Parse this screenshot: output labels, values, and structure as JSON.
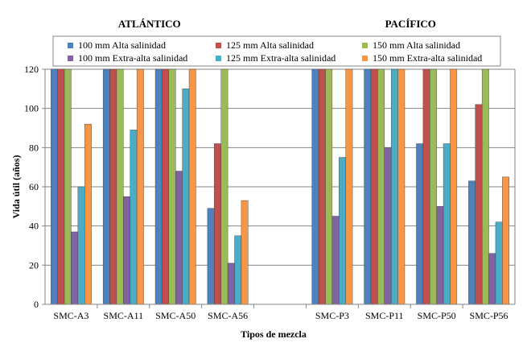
{
  "chart_data": {
    "type": "bar",
    "ylabel": "Vida útil (años)",
    "xlabel": "Tipos de mezcla",
    "ylim": [
      0,
      120
    ],
    "yticks": [
      0,
      20,
      40,
      60,
      80,
      100,
      120
    ],
    "grid": true,
    "regions": [
      {
        "title": "ATLÁNTICO",
        "categories": [
          "SMC-A3",
          "SMC-A11",
          "SMC-A50",
          "SMC-A56"
        ]
      },
      {
        "title": "PACÍFICO",
        "categories": [
          "SMC-P3",
          "SMC-P11",
          "SMC-P50",
          "SMC-P56"
        ]
      }
    ],
    "categories": [
      "SMC-A3",
      "SMC-A11",
      "SMC-A50",
      "SMC-A56",
      "",
      "SMC-P3",
      "SMC-P11",
      "SMC-P50",
      "SMC-P56"
    ],
    "series": [
      {
        "name": "100 mm Alta salinidad",
        "color": "#4f81bd",
        "values": [
          120,
          120,
          120,
          49,
          null,
          120,
          120,
          82,
          63
        ]
      },
      {
        "name": "125 mm Alta salinidad",
        "color": "#c0504d",
        "values": [
          120,
          120,
          120,
          82,
          null,
          120,
          120,
          120,
          102
        ]
      },
      {
        "name": "150 mm Alta salinidad",
        "color": "#9bbb59",
        "values": [
          120,
          120,
          120,
          120,
          null,
          120,
          120,
          120,
          120
        ]
      },
      {
        "name": "100 mm Extra-alta salinidad",
        "color": "#8064a2",
        "values": [
          37,
          55,
          68,
          21,
          null,
          45,
          80,
          50,
          26
        ]
      },
      {
        "name": "125 mm Extra-alta salinidad",
        "color": "#4bacc6",
        "values": [
          60,
          89,
          110,
          35,
          null,
          75,
          120,
          82,
          42
        ]
      },
      {
        "name": "150 mm Extra-alta salinidad",
        "color": "#f79646",
        "values": [
          92,
          120,
          120,
          53,
          null,
          120,
          120,
          120,
          65
        ]
      }
    ]
  }
}
